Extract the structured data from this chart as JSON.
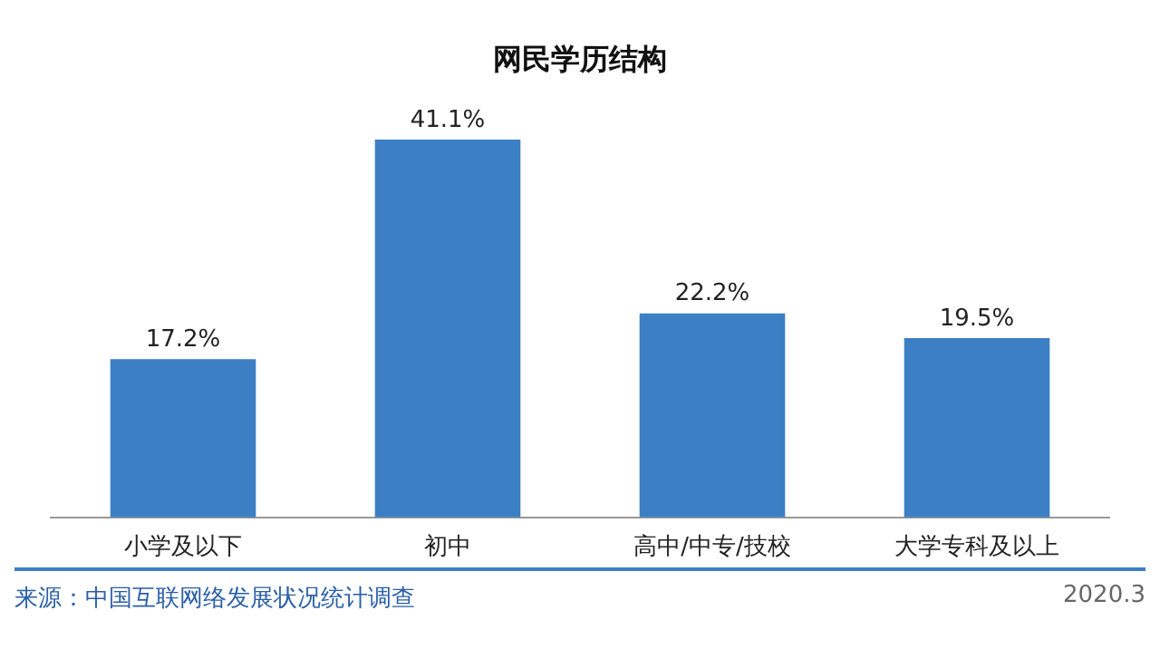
{
  "chart_data": {
    "type": "bar",
    "title": "网民学历结构",
    "categories": [
      "小学及以下",
      "初中",
      "高中/中专/技校",
      "大学专科及以上"
    ],
    "values": [
      17.2,
      41.1,
      22.2,
      19.5
    ],
    "value_labels": [
      "17.2%",
      "41.1%",
      "22.2%",
      "19.5%"
    ],
    "color": "#3d7fc5",
    "grid": false,
    "annotations": [
      "来源：中国互联网络发展状况统计调查",
      "2020.3"
    ]
  }
}
